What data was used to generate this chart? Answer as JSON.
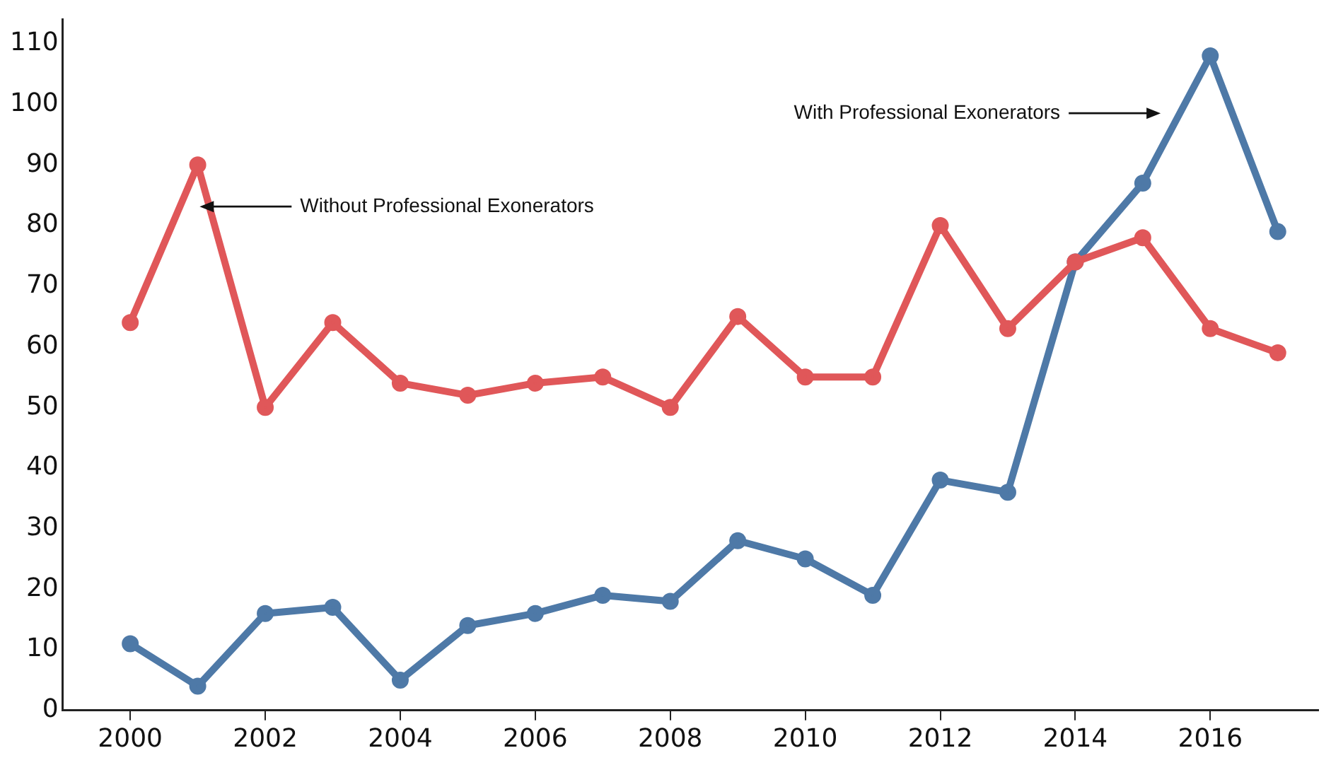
{
  "chart_data": {
    "type": "line",
    "x": [
      2000,
      2001,
      2002,
      2003,
      2004,
      2005,
      2006,
      2007,
      2008,
      2009,
      2010,
      2011,
      2012,
      2013,
      2014,
      2015,
      2016,
      2017
    ],
    "series": [
      {
        "color": "#e05759",
        "values": [
          64,
          90,
          50,
          64,
          54,
          52,
          54,
          55,
          50,
          65,
          55,
          55,
          80,
          63,
          74,
          78,
          63,
          59
        ]
      },
      {
        "color": "#4e79a7",
        "values": [
          11,
          4,
          16,
          17,
          5,
          14,
          16,
          19,
          18,
          28,
          25,
          19,
          38,
          36,
          74,
          87,
          108,
          79
        ]
      }
    ],
    "xlim": [
      1999,
      2017.6
    ],
    "xticks": [
      2000,
      2002,
      2004,
      2006,
      2008,
      2010,
      2012,
      2014,
      2016
    ],
    "ylim": [
      0,
      114
    ],
    "yticks": [
      0,
      10,
      20,
      30,
      40,
      50,
      60,
      70,
      80,
      90,
      100,
      110
    ],
    "grid": false,
    "legend": false,
    "marker": "circle",
    "line_style": "solid",
    "annotations": [
      "Without Professional Exonerators",
      "With Professional Exonerators"
    ]
  }
}
